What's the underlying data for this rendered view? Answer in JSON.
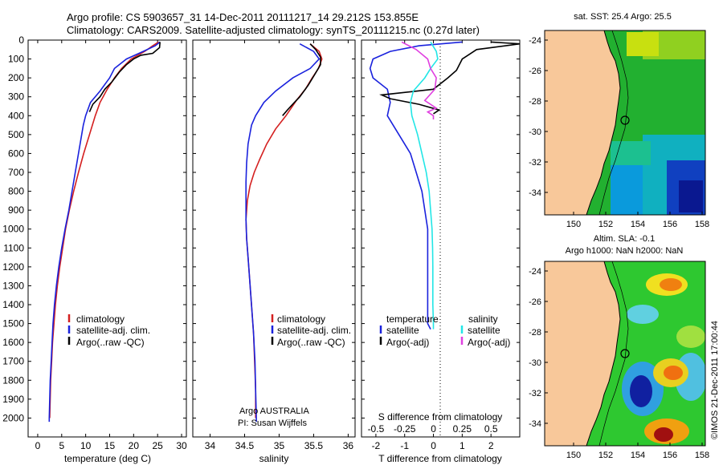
{
  "header": {
    "line1": "Argo profile: CS 5903657_31 14-Dec-2011 20111217_14 29.212S 153.855E",
    "line2": "Climatology: CARS2009. Satellite-adjusted climatology: synTS_20111215.nc (0.27d later)"
  },
  "credit": "Argo AUSTRALIA",
  "pi": "PI: Susan Wijffels",
  "watermark": "©IMOS 21-Dec-2011 17:00:44",
  "legend_temp": [
    "climatology",
    "satellite-adj. clim.",
    "Argo(..raw -QC)"
  ],
  "legend_sal": [
    "climatology",
    "satellite-adj. clim.",
    "Argo(..raw -QC)"
  ],
  "legend_diff": {
    "temperature": "temperature",
    "salinity": "salinity",
    "satellite": "satellite",
    "argo": "Argo(-adj)"
  },
  "colors": {
    "climatology": "#d42020",
    "satellite": "#1a22dd",
    "argo": "#000000",
    "sal_satellite": "#22e6e6",
    "sal_argo": "#e040e0",
    "land": "#f8c89a"
  },
  "map_sst": {
    "title": "sat. SST: 25.4 Argo: 25.5",
    "xticks": [
      "150",
      "152",
      "154",
      "156",
      "158"
    ],
    "yticks": [
      "-24",
      "-26",
      "-28",
      "-30",
      "-32",
      "-34"
    ]
  },
  "map_sla": {
    "title1": "Altim. SLA: -0.1",
    "title2": "Argo h1000: NaN h2000: NaN",
    "xticks": [
      "150",
      "152",
      "154",
      "156",
      "158"
    ],
    "yticks": [
      "-24",
      "-26",
      "-28",
      "-30",
      "-32",
      "-34"
    ]
  },
  "chart_data": [
    {
      "type": "line",
      "xlabel": "temperature (deg C)",
      "ylabel": "",
      "xlim": [
        -2,
        31
      ],
      "ylim": [
        0,
        2100
      ],
      "y_reversed": true,
      "xticks": [
        0,
        5,
        10,
        15,
        20,
        25,
        30
      ],
      "yticks": [
        0,
        100,
        200,
        300,
        400,
        500,
        600,
        700,
        800,
        900,
        1000,
        1100,
        1200,
        1300,
        1400,
        1500,
        1600,
        1700,
        1800,
        1900,
        2000
      ],
      "series": [
        {
          "name": "climatology",
          "color": "#d42020",
          "points": [
            [
              25.2,
              10
            ],
            [
              24,
              30
            ],
            [
              22.3,
              60
            ],
            [
              19.5,
              100
            ],
            [
              17.5,
              150
            ],
            [
              16,
              200
            ],
            [
              14.5,
              260
            ],
            [
              13,
              330
            ],
            [
              12,
              400
            ],
            [
              10.8,
              500
            ],
            [
              9.6,
              600
            ],
            [
              8.5,
              700
            ],
            [
              7.5,
              800
            ],
            [
              6.6,
              900
            ],
            [
              5.8,
              1000
            ],
            [
              5.2,
              1100
            ],
            [
              4.6,
              1200
            ],
            [
              4.1,
              1300
            ],
            [
              3.7,
              1400
            ],
            [
              3.4,
              1500
            ],
            [
              3.1,
              1600
            ],
            [
              2.9,
              1700
            ],
            [
              2.7,
              1800
            ],
            [
              2.6,
              1900
            ],
            [
              2.5,
              2000
            ]
          ]
        },
        {
          "name": "satellite-adj. clim.",
          "color": "#1a22dd",
          "points": [
            [
              25.5,
              10
            ],
            [
              24.5,
              30
            ],
            [
              22,
              60
            ],
            [
              18.5,
              100
            ],
            [
              16,
              150
            ],
            [
              15,
              200
            ],
            [
              13,
              270
            ],
            [
              11,
              330
            ],
            [
              10,
              400
            ],
            [
              9.5,
              450
            ],
            [
              8.5,
              600
            ],
            [
              7.5,
              750
            ],
            [
              6.5,
              900
            ],
            [
              5.7,
              1000
            ],
            [
              5,
              1100
            ],
            [
              4.4,
              1200
            ],
            [
              3.9,
              1300
            ],
            [
              3.5,
              1400
            ],
            [
              3.2,
              1500
            ],
            [
              3,
              1600
            ],
            [
              2.8,
              1700
            ],
            [
              2.6,
              1800
            ],
            [
              2.5,
              1900
            ],
            [
              2.4,
              2000
            ],
            [
              2.4,
              2020
            ]
          ]
        },
        {
          "name": "Argo(..raw -QC)",
          "color": "#000000",
          "points": [
            [
              25.5,
              10
            ],
            [
              25.4,
              40
            ],
            [
              24,
              70
            ],
            [
              21.5,
              80
            ],
            [
              20,
              100
            ],
            [
              18.5,
              130
            ],
            [
              17,
              170
            ],
            [
              15.5,
              220
            ],
            [
              14,
              260
            ],
            [
              13,
              300
            ],
            [
              11.5,
              340
            ],
            [
              10.8,
              380
            ]
          ]
        }
      ]
    },
    {
      "type": "line",
      "xlabel": "salinity",
      "ylabel": "",
      "xlim": [
        33.75,
        36.1
      ],
      "ylim": [
        0,
        2100
      ],
      "y_reversed": true,
      "xticks": [
        34,
        34.5,
        35,
        35.5,
        36
      ],
      "series": [
        {
          "name": "climatology",
          "color": "#d42020",
          "points": [
            [
              35.45,
              20
            ],
            [
              35.58,
              60
            ],
            [
              35.62,
              100
            ],
            [
              35.57,
              150
            ],
            [
              35.48,
              200
            ],
            [
              35.38,
              260
            ],
            [
              35.25,
              320
            ],
            [
              35.1,
              400
            ],
            [
              34.95,
              470
            ],
            [
              34.82,
              550
            ],
            [
              34.72,
              630
            ],
            [
              34.64,
              700
            ],
            [
              34.58,
              770
            ],
            [
              34.54,
              850
            ],
            [
              34.52,
              950
            ],
            [
              34.53,
              1050
            ],
            [
              34.55,
              1150
            ],
            [
              34.57,
              1250
            ],
            [
              34.59,
              1350
            ],
            [
              34.61,
              1450
            ],
            [
              34.63,
              1550
            ],
            [
              34.64,
              1650
            ],
            [
              34.65,
              1750
            ],
            [
              34.66,
              1850
            ],
            [
              34.66,
              2000
            ]
          ]
        },
        {
          "name": "satellite-adj. clim.",
          "color": "#1a22dd",
          "points": [
            [
              35.3,
              20
            ],
            [
              35.5,
              60
            ],
            [
              35.58,
              100
            ],
            [
              35.45,
              150
            ],
            [
              35.2,
              200
            ],
            [
              34.95,
              270
            ],
            [
              34.78,
              330
            ],
            [
              34.66,
              400
            ],
            [
              34.6,
              450
            ],
            [
              34.55,
              550
            ],
            [
              34.53,
              650
            ],
            [
              34.52,
              750
            ],
            [
              34.52,
              850
            ],
            [
              34.52,
              950
            ],
            [
              34.53,
              1050
            ],
            [
              34.55,
              1150
            ],
            [
              34.57,
              1250
            ],
            [
              34.59,
              1350
            ],
            [
              34.61,
              1450
            ],
            [
              34.63,
              1550
            ],
            [
              34.65,
              1700
            ],
            [
              34.66,
              1850
            ],
            [
              34.67,
              2000
            ],
            [
              34.67,
              2020
            ]
          ]
        },
        {
          "name": "Argo(..raw -QC)",
          "color": "#000000",
          "points": [
            [
              35.45,
              20
            ],
            [
              35.53,
              50
            ],
            [
              35.6,
              90
            ],
            [
              35.6,
              130
            ],
            [
              35.52,
              180
            ],
            [
              35.42,
              240
            ],
            [
              35.3,
              300
            ],
            [
              35.22,
              330
            ],
            [
              35.12,
              370
            ],
            [
              35.05,
              400
            ]
          ]
        }
      ]
    },
    {
      "type": "line",
      "xlabel": "T difference from climatology",
      "x2label": "S difference from climatology",
      "ylabel": "",
      "xlim": [
        -2.5,
        3
      ],
      "ylim": [
        0,
        2100
      ],
      "y_reversed": true,
      "xticks": [
        -2,
        -1,
        0,
        1,
        2
      ],
      "x2ticks": [
        "-0.5",
        "-0.25",
        "0",
        "0.25",
        "0.5"
      ],
      "x2tick_values": [
        -2,
        -1,
        0,
        1,
        2
      ],
      "series": [
        {
          "name": "temperature satellite",
          "color": "#1a22dd",
          "points": [
            [
              1,
              10
            ],
            [
              -0.5,
              30
            ],
            [
              -1.5,
              60
            ],
            [
              -2.1,
              100
            ],
            [
              -2.2,
              150
            ],
            [
              -2.1,
              200
            ],
            [
              -1.6,
              260
            ],
            [
              -1.5,
              330
            ],
            [
              -1.6,
              400
            ],
            [
              -1.2,
              500
            ],
            [
              -0.8,
              600
            ],
            [
              -0.6,
              700
            ],
            [
              -0.4,
              800
            ],
            [
              -0.3,
              900
            ],
            [
              -0.2,
              1000
            ],
            [
              -0.2,
              1100
            ],
            [
              -0.2,
              1200
            ],
            [
              -0.2,
              1300
            ],
            [
              -0.2,
              1400
            ],
            [
              -0.2,
              1500
            ],
            [
              -0.1,
              1530
            ]
          ]
        },
        {
          "name": "temperature Argo(-adj)",
          "color": "#000000",
          "points": [
            [
              2,
              10
            ],
            [
              3,
              20
            ],
            [
              1.5,
              50
            ],
            [
              1.2,
              80
            ],
            [
              1,
              100
            ],
            [
              0.8,
              160
            ],
            [
              0.5,
              200
            ],
            [
              0,
              260
            ],
            [
              -1.8,
              290
            ],
            [
              -1.5,
              310
            ],
            [
              -0.5,
              340
            ],
            [
              0.2,
              370
            ],
            [
              0,
              390
            ]
          ]
        },
        {
          "name": "salinity satellite",
          "color": "#22e6e6",
          "points": [
            [
              -0.1,
              10
            ],
            [
              0.1,
              60
            ],
            [
              0.15,
              100
            ],
            [
              -0.1,
              150
            ],
            [
              -0.3,
              200
            ],
            [
              -0.7,
              270
            ],
            [
              -0.8,
              330
            ],
            [
              -0.75,
              400
            ],
            [
              -0.55,
              500
            ],
            [
              -0.4,
              600
            ],
            [
              -0.25,
              700
            ],
            [
              -0.15,
              800
            ],
            [
              -0.1,
              900
            ],
            [
              -0.05,
              1000
            ],
            [
              -0.03,
              1100
            ],
            [
              -0.02,
              1200
            ],
            [
              -0.02,
              1300
            ],
            [
              -0.02,
              1400
            ],
            [
              0,
              1500
            ],
            [
              0,
              1530
            ]
          ]
        },
        {
          "name": "salinity Argo(-adj)",
          "color": "#e040e0",
          "points": [
            [
              -1.1,
              10
            ],
            [
              -0.6,
              50
            ],
            [
              -0.2,
              100
            ],
            [
              -0.1,
              150
            ],
            [
              0.1,
              200
            ],
            [
              0.05,
              260
            ],
            [
              -0.3,
              320
            ],
            [
              0.1,
              360
            ],
            [
              -0.2,
              380
            ],
            [
              0,
              400
            ],
            [
              0,
              420
            ]
          ]
        }
      ]
    }
  ]
}
